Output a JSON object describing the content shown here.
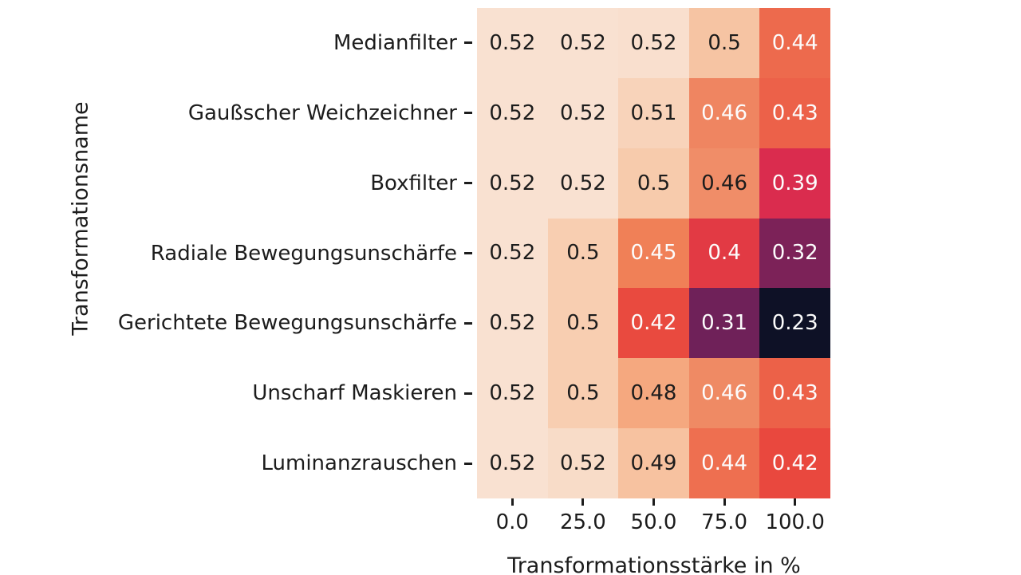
{
  "palette": {
    "background": "#ffffff",
    "axis_text": "#1c1c1c",
    "cell_text_dark": "#1c1c1c",
    "cell_text_light": "#fcfcfc"
  },
  "chart_data": {
    "type": "heatmap",
    "title": "",
    "xlabel": "Transformationsstärke in %",
    "ylabel": "Transformationsname",
    "x_tick_labels": [
      "0.0",
      "25.0",
      "50.0",
      "75.0",
      "100.0"
    ],
    "y_tick_labels": [
      "Medianfilter",
      "Gaußscher Weichzeichner",
      "Boxfilter",
      "Radiale Bewegungsunschärfe",
      "Gerichtete Bewegungsunschärfe",
      "Unscharf Maskieren",
      "Luminanzrauschen"
    ],
    "values": [
      [
        0.52,
        0.52,
        0.52,
        0.5,
        0.44
      ],
      [
        0.52,
        0.52,
        0.51,
        0.46,
        0.43
      ],
      [
        0.52,
        0.52,
        0.5,
        0.46,
        0.39
      ],
      [
        0.52,
        0.5,
        0.45,
        0.4,
        0.32
      ],
      [
        0.52,
        0.5,
        0.42,
        0.31,
        0.23
      ],
      [
        0.52,
        0.5,
        0.48,
        0.46,
        0.43
      ],
      [
        0.52,
        0.52,
        0.49,
        0.44,
        0.42
      ]
    ],
    "value_labels": [
      [
        "0.52",
        "0.52",
        "0.52",
        "0.5",
        "0.44"
      ],
      [
        "0.52",
        "0.52",
        "0.51",
        "0.46",
        "0.43"
      ],
      [
        "0.52",
        "0.52",
        "0.5",
        "0.46",
        "0.39"
      ],
      [
        "0.52",
        "0.5",
        "0.45",
        "0.4",
        "0.32"
      ],
      [
        "0.52",
        "0.5",
        "0.42",
        "0.31",
        "0.23"
      ],
      [
        "0.52",
        "0.5",
        "0.48",
        "0.46",
        "0.43"
      ],
      [
        "0.52",
        "0.52",
        "0.49",
        "0.44",
        "0.42"
      ]
    ],
    "cell_colors": [
      [
        "#f9e1d1",
        "#f9e1d1",
        "#f9dfce",
        "#f6c4a3",
        "#ed6a4d"
      ],
      [
        "#f9e1d1",
        "#f9e1d1",
        "#f8d3ba",
        "#ef8561",
        "#ec6149"
      ],
      [
        "#f9e1d1",
        "#f9e1d1",
        "#f7cbac",
        "#f08d68",
        "#da2c4e"
      ],
      [
        "#f9e1d1",
        "#f8ceb1",
        "#f08057",
        "#e23a44",
        "#7c2258"
      ],
      [
        "#f9e1d1",
        "#f8ceb1",
        "#e94a3f",
        "#6f2159",
        "#0e1126"
      ],
      [
        "#f9e1d1",
        "#f8ceb1",
        "#f5a87f",
        "#ef8a64",
        "#ec6148"
      ],
      [
        "#f9e1d1",
        "#f8dcc8",
        "#f7c2a0",
        "#ee6f50",
        "#e9483e"
      ]
    ],
    "cell_text_colors": [
      [
        "dark",
        "dark",
        "dark",
        "dark",
        "light"
      ],
      [
        "dark",
        "dark",
        "dark",
        "light",
        "light"
      ],
      [
        "dark",
        "dark",
        "dark",
        "dark",
        "light"
      ],
      [
        "dark",
        "dark",
        "light",
        "light",
        "light"
      ],
      [
        "dark",
        "dark",
        "light",
        "light",
        "light"
      ],
      [
        "dark",
        "dark",
        "dark",
        "light",
        "light"
      ],
      [
        "dark",
        "dark",
        "dark",
        "light",
        "light"
      ]
    ],
    "colormap": "rocket",
    "displayed_value_min": 0.23,
    "displayed_value_max": 0.52,
    "grid": false,
    "legend": "none"
  }
}
